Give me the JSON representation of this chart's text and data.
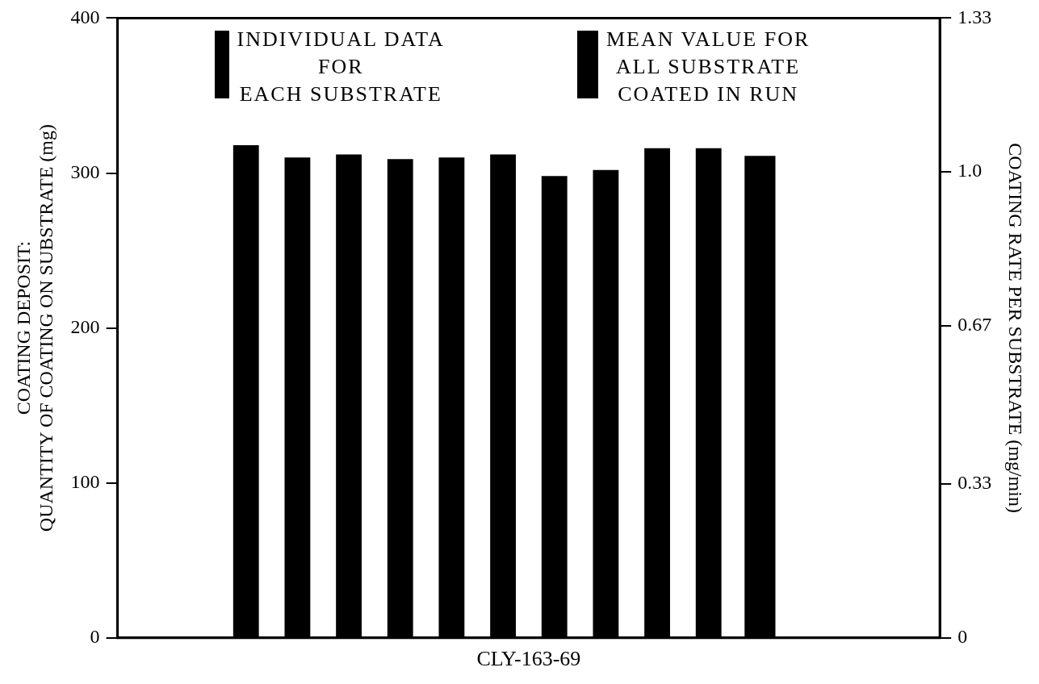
{
  "chart_data": {
    "type": "bar",
    "xlabel": "CLY-163-69",
    "ylabel": "COATING DEPOSIT:\nQUANTITY OF COATING ON SUBSTRATE (mg)",
    "y2label": "COATING RATE PER SUBSTRATE (mg/min)",
    "categories": [
      null,
      null,
      null,
      null,
      null,
      null,
      null,
      null,
      null,
      null,
      null,
      null,
      null,
      null,
      null,
      null
    ],
    "series": [
      {
        "name": "INDIVIDUAL DATA\nFOR\nEACH SUBSTRATE",
        "color": "#000000",
        "values": [
          null,
          null,
          318,
          310,
          312,
          309,
          310,
          312,
          298,
          302,
          316,
          316,
          null,
          null,
          null,
          null
        ]
      },
      {
        "name": "MEAN VALUE FOR\nALL SUBSTRATE\nCOATED IN RUN",
        "color": "#000000",
        "values": [
          null,
          null,
          null,
          null,
          null,
          null,
          null,
          null,
          null,
          null,
          null,
          null,
          311,
          null,
          null,
          null
        ]
      }
    ],
    "ylim": [
      0,
      400
    ],
    "yticks": [
      0,
      100,
      200,
      300,
      400
    ],
    "y2lim": [
      0,
      1.33
    ],
    "y2ticks": [
      0,
      0.33,
      0.67,
      {
        "value": 1,
        "label": "1.0"
      },
      1.33
    ],
    "legend": "top",
    "grid": false
  }
}
